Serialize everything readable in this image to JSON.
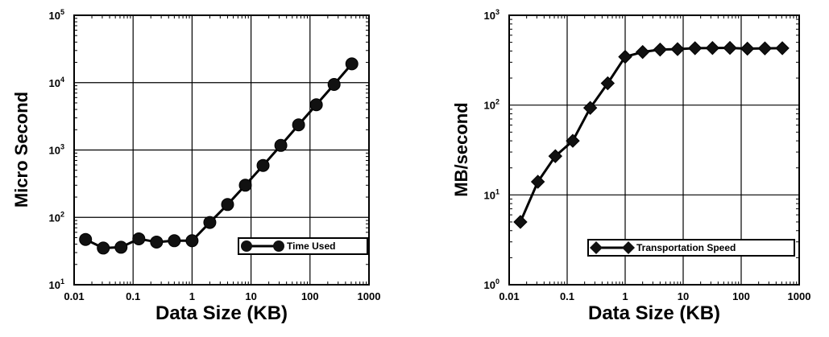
{
  "chart_data": [
    {
      "type": "line",
      "xlabel": "Data Size (KB)",
      "ylabel": "Micro Second",
      "x_scale": "log",
      "y_scale": "log",
      "xlim": [
        0.01,
        1000
      ],
      "ylim": [
        10,
        100000
      ],
      "x_tick_labels": [
        "0.01",
        "0.1",
        "1",
        "10",
        "100",
        "1000"
      ],
      "y_tick_labels": [
        {
          "base": "10",
          "exp": "1"
        },
        {
          "base": "10",
          "exp": "2"
        },
        {
          "base": "10",
          "exp": "3"
        },
        {
          "base": "10",
          "exp": "4"
        },
        {
          "base": "10",
          "exp": "5"
        }
      ],
      "grid": true,
      "legend_position": "bottom-right",
      "marker": "circle",
      "series": [
        {
          "name": "Time Used",
          "x": [
            0.015625,
            0.03125,
            0.0625,
            0.125,
            0.25,
            0.5,
            1,
            2,
            4,
            8,
            16,
            32,
            64,
            128,
            256,
            512
          ],
          "y": [
            47,
            35,
            36,
            48,
            43,
            45,
            45,
            84,
            155,
            300,
            590,
            1170,
            2360,
            4700,
            9400,
            19000
          ]
        }
      ]
    },
    {
      "type": "line",
      "xlabel": "Data Size (KB)",
      "ylabel": "MB/second",
      "x_scale": "log",
      "y_scale": "log",
      "xlim": [
        0.01,
        1000
      ],
      "ylim": [
        1,
        1000
      ],
      "x_tick_labels": [
        "0.01",
        "0.1",
        "1",
        "10",
        "100",
        "1000"
      ],
      "y_tick_labels": [
        {
          "base": "10",
          "exp": "0"
        },
        {
          "base": "10",
          "exp": "1"
        },
        {
          "base": "10",
          "exp": "2"
        },
        {
          "base": "10",
          "exp": "3"
        }
      ],
      "grid": true,
      "legend_position": "bottom-right",
      "marker": "diamond",
      "series": [
        {
          "name": "Transportation Speed",
          "x": [
            0.015625,
            0.03125,
            0.0625,
            0.125,
            0.25,
            0.5,
            1,
            2,
            4,
            8,
            16,
            32,
            64,
            128,
            256,
            512
          ],
          "y": [
            5,
            14,
            27,
            40,
            93,
            175,
            345,
            390,
            415,
            420,
            430,
            432,
            433,
            425,
            428,
            430
          ]
        }
      ]
    }
  ]
}
